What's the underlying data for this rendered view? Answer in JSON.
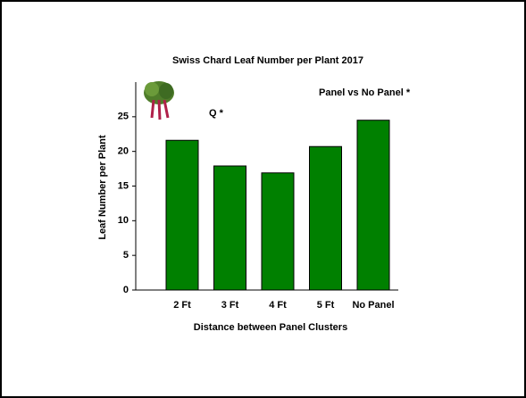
{
  "chart_data": {
    "type": "bar",
    "title": "Swiss Chard Leaf Number per Plant 2017",
    "x_label": "Distance between Panel Clusters",
    "y_label": "Leaf Number per Plant",
    "categories": [
      "2 Ft",
      "3 Ft",
      "4 Ft",
      "5 Ft",
      "No Panel"
    ],
    "values": [
      21.6,
      17.9,
      16.9,
      20.7,
      24.5
    ],
    "color": "#008000",
    "ylim": [
      0,
      30
    ],
    "yticks": [
      0,
      5,
      10,
      15,
      20,
      25
    ],
    "grid": false,
    "annotations": [
      "Q *",
      "Panel vs No Panel *"
    ]
  }
}
